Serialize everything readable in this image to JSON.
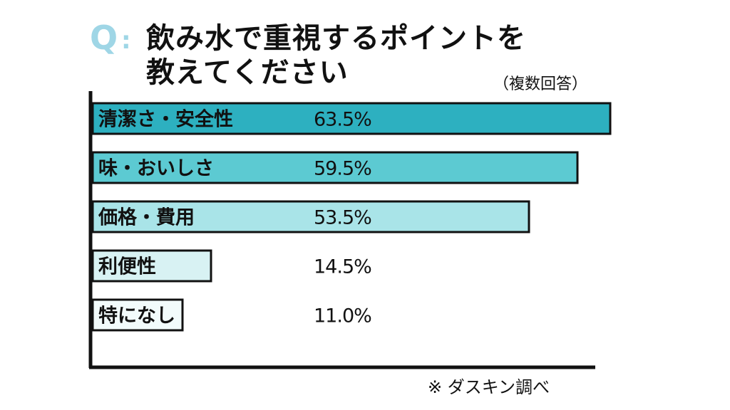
{
  "header": {
    "q_mark": "Q",
    "q_colon": ":",
    "title_line1": "飲み水で重視するポイントを",
    "title_line2": "教えてください",
    "note": "（複数回答）"
  },
  "footer": {
    "source": "※  ダスキン調べ"
  },
  "colors": {
    "accent": "#9fd6e6",
    "bar_colors": [
      "#2db0c0",
      "#5ccad2",
      "#a9e4e8",
      "#d8f2f3",
      "#f2fbfb"
    ]
  },
  "chart_data": {
    "type": "bar",
    "orientation": "horizontal",
    "title": "飲み水で重視するポイントを教えてください",
    "categories": [
      "清潔さ・安全性",
      "味・おいしさ",
      "価格・費用",
      "利便性",
      "特になし"
    ],
    "values": [
      63.5,
      59.5,
      53.5,
      14.5,
      11.0
    ],
    "value_labels": [
      "63.5%",
      "59.5%",
      "53.5%",
      "14.5%",
      "11.0%"
    ],
    "unit": "%",
    "xlim": [
      0,
      63.5
    ],
    "grid": false,
    "legend": "none"
  }
}
